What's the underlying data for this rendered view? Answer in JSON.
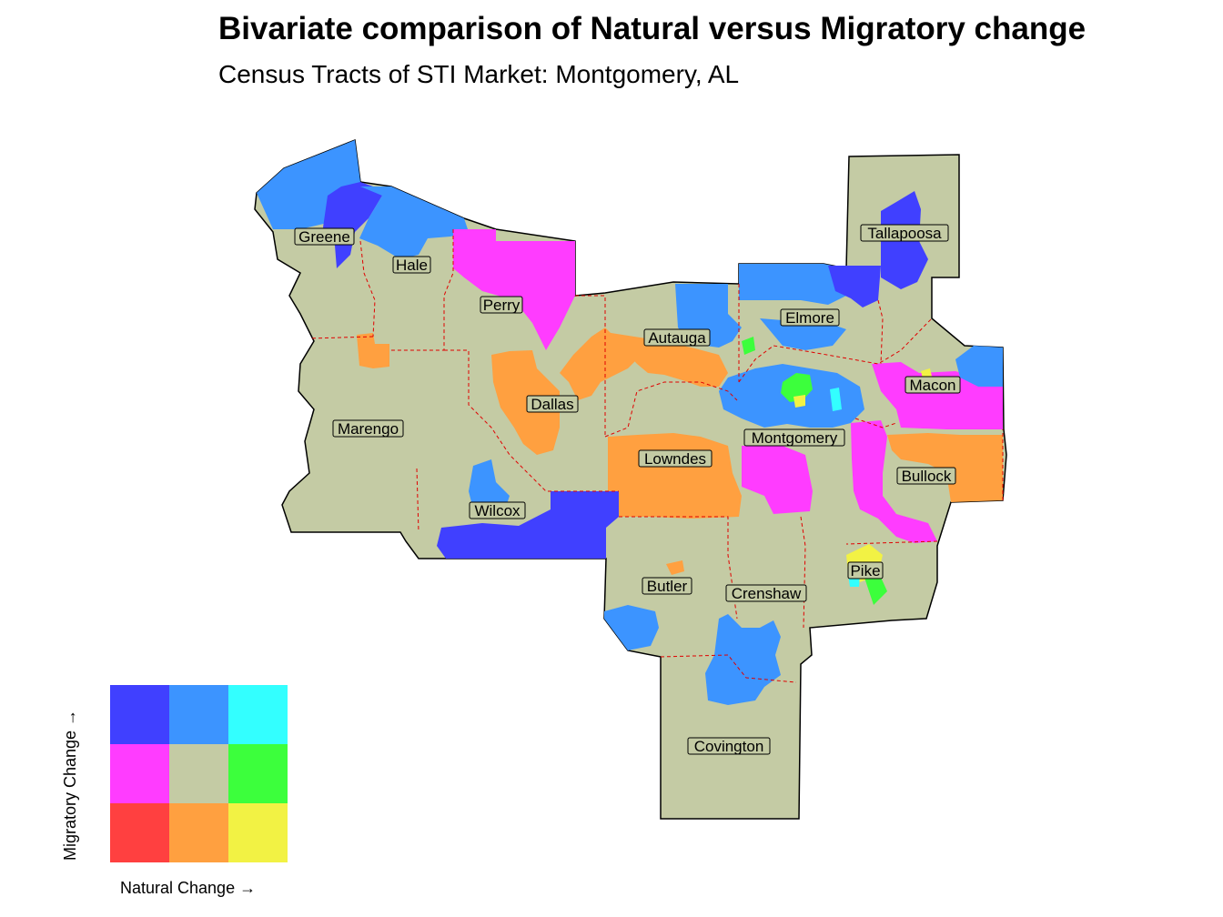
{
  "title": "Bivariate comparison of Natural versus Migratory change",
  "subtitle": "Census Tracts of STI Market: Montgomery, AL",
  "colors": {
    "base": "#c4cba4",
    "high_migratory_low_natural": "#4040ff",
    "high_migratory_mid_natural": "#3c94ff",
    "high_migratory_high_natural": "#33ffff",
    "mid_migratory_low_natural": "#ff3cff",
    "mid_migratory_mid_natural": "#c4cba4",
    "mid_migratory_high_natural": "#3cff3c",
    "low_migratory_low_natural": "#ff4040",
    "low_migratory_mid_natural": "#ffa040",
    "low_migratory_high_natural": "#f2f244",
    "county_border": "#e00000"
  },
  "counties": [
    {
      "name": "Greene"
    },
    {
      "name": "Hale"
    },
    {
      "name": "Perry"
    },
    {
      "name": "Tallapoosa"
    },
    {
      "name": "Elmore"
    },
    {
      "name": "Autauga"
    },
    {
      "name": "Macon"
    },
    {
      "name": "Dallas"
    },
    {
      "name": "Marengo"
    },
    {
      "name": "Montgomery"
    },
    {
      "name": "Lowndes"
    },
    {
      "name": "Bullock"
    },
    {
      "name": "Wilcox"
    },
    {
      "name": "Pike"
    },
    {
      "name": "Butler"
    },
    {
      "name": "Crenshaw"
    },
    {
      "name": "Covington"
    }
  ],
  "legend": {
    "x_label": "Natural Change →",
    "y_label": "Migratory Change →",
    "grid": [
      [
        "#4040ff",
        "#3c94ff",
        "#33ffff"
      ],
      [
        "#ff3cff",
        "#c4cba4",
        "#3cff3c"
      ],
      [
        "#ff4040",
        "#ffa040",
        "#f2f244"
      ]
    ]
  }
}
